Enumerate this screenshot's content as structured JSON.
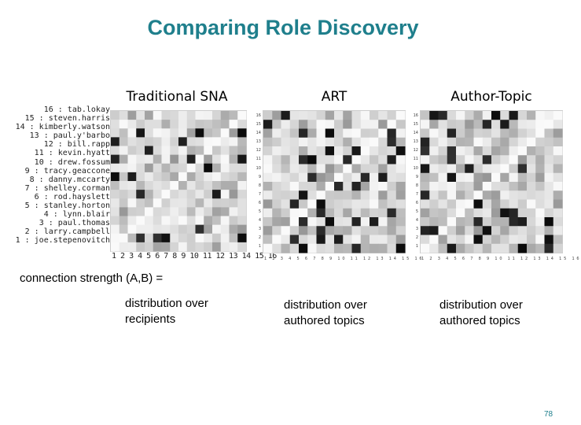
{
  "slide": {
    "title": "Comparing Role Discovery",
    "page_number": "78",
    "connection_label": "connection strength (A,B) ="
  },
  "panels": [
    {
      "title": "Traditional SNA",
      "caption_line1": "distribution over",
      "caption_line2": "recipients"
    },
    {
      "title": "ART",
      "caption_line1": "distribution over",
      "caption_line2": "authored topics"
    },
    {
      "title": "Author-Topic",
      "caption_line1": "distribution over",
      "caption_line2": "authored topics"
    }
  ],
  "sna_labels": "16 : tab.lokay\n15 : steven.harris\n14 : kimberly.watson\n13 : paul.y'barbo\n12 : bill.rapp\n11 : kevin.hyatt\n10 : drew.fossum\n9 : tracy.geaccone\n8 : danny.mccarty\n7 : shelley.corman\n6 : rod.hayslett\n5 : stanley.horton\n4 : lynn.blair\n3 : paul.thomas\n2 : larry.campbell\n1 : joe.stepenovitch",
  "sna_xticks": "1 2 3 4 5 6 7 8 9 10 11 12 13 14 15 16",
  "small_yticks": "16\n15\n14\n13\n12\n11\n10\n9\n8\n7\n6\n5\n4\n3\n2\n1",
  "small_xticks": "1 2 3 4 5 6 7 8 9 10 11 12 13 14 15 16"
}
